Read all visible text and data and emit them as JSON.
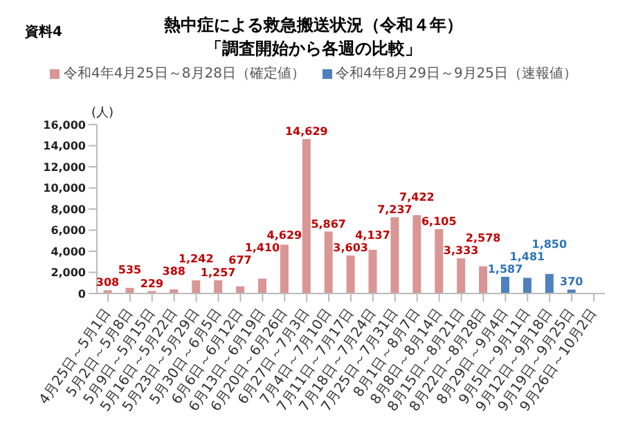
{
  "chart_data": {
    "type": "bar",
    "title": "熱中症による救急搬送状況（令和４年）",
    "subtitle": "「調査開始から各週の比較」",
    "ylabel": "(人)",
    "annotations": [
      "資料4"
    ],
    "categories": [
      "4月25日～5月1日",
      "5月2日～5月8日",
      "5月9日～5月15日",
      "5月16日～5月22日",
      "5月23日～5月29日",
      "5月30日～6月5日",
      "6月6日～6月12日",
      "6月13日～6月19日",
      "6月20日～6月26日",
      "6月27日～7月3日",
      "7月4日～7月10日",
      "7月11日～7月17日",
      "7月18日～7月24日",
      "7月25日～7月31日",
      "8月1日～8月7日",
      "8月8日～8月14日",
      "8月15日～8月21日",
      "8月22日～8月28日",
      "8月29日～9月4日",
      "9月5日～9月11日",
      "9月12日～9月18日",
      "9月19日～9月25日",
      "9月26日～10月2日"
    ],
    "series": [
      {
        "name": "令和4年4月25日～8月28日（確定値）",
        "color": "#d99694",
        "values": [
          308,
          535,
          229,
          388,
          1242,
          1257,
          677,
          1410,
          4629,
          14629,
          5867,
          3603,
          4137,
          7237,
          7422,
          6105,
          3333,
          2578,
          null,
          null,
          null,
          null,
          null
        ],
        "value_labels": [
          "308",
          "535",
          "229",
          "388",
          "1,242",
          "1,257",
          "677",
          "1,410",
          "4,629",
          "14,629",
          "5,867",
          "3,603",
          "4,137",
          "7,237",
          "7,422",
          "6,105",
          "3,333",
          "2,578",
          null,
          null,
          null,
          null,
          null
        ]
      },
      {
        "name": "令和4年8月29日～9月25日（速報値）",
        "color": "#4f81bd",
        "values": [
          null,
          null,
          null,
          null,
          null,
          null,
          null,
          null,
          null,
          null,
          null,
          null,
          null,
          null,
          null,
          null,
          null,
          null,
          1587,
          1481,
          1850,
          370,
          null
        ],
        "value_labels": [
          null,
          null,
          null,
          null,
          null,
          null,
          null,
          null,
          null,
          null,
          null,
          null,
          null,
          null,
          null,
          null,
          null,
          null,
          "1,587",
          "1,481",
          "1,850",
          "370",
          null
        ]
      }
    ],
    "stacked": true,
    "ylim": [
      0,
      16000
    ],
    "yticks": [
      0,
      {
        "value": 2000,
        "label": "2,000"
      },
      {
        "value": 4000,
        "label": "4,000"
      },
      {
        "value": 6000,
        "label": "6,000"
      },
      {
        "value": 8000,
        "label": "8,000"
      },
      {
        "value": 10000,
        "label": "10,000"
      },
      {
        "value": 12000,
        "label": "12,000"
      },
      {
        "value": 14000,
        "label": "14,000"
      },
      {
        "value": 16000,
        "label": "16,000"
      }
    ],
    "legend": "top",
    "grid": false
  }
}
